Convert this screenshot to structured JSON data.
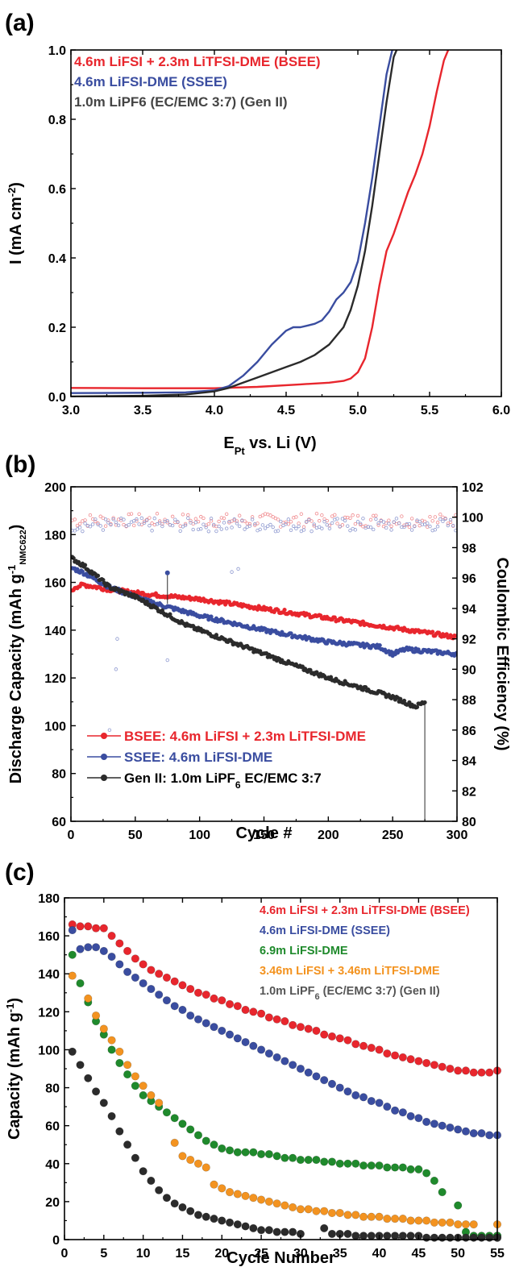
{
  "chart_data": [
    {
      "panel": "(a)",
      "type": "line",
      "xlabel": "E",
      "xlabel_sub": "Pt",
      "xlabel_rest": " vs. Li (V)",
      "ylabel": "I (mA cm",
      "ylabel_sup": "-2",
      "ylabel_end": ")",
      "xlim": [
        3.0,
        6.0
      ],
      "ylim": [
        0.0,
        1.0
      ],
      "xticks": [
        3.0,
        3.5,
        4.0,
        4.5,
        5.0,
        5.5,
        6.0
      ],
      "yticks": [
        0.0,
        0.2,
        0.4,
        0.6,
        0.8,
        1.0
      ],
      "series": [
        {
          "name": "4.6m LiFSI + 2.3m LiTFSI-DME (BSEE)",
          "color": "#e8262d",
          "x": [
            3.0,
            3.5,
            4.0,
            4.3,
            4.6,
            4.8,
            4.9,
            4.95,
            5.0,
            5.05,
            5.1,
            5.15,
            5.2,
            5.25,
            5.3,
            5.35,
            5.4,
            5.45,
            5.5,
            5.55,
            5.6,
            5.63
          ],
          "y": [
            0.025,
            0.024,
            0.024,
            0.028,
            0.035,
            0.04,
            0.045,
            0.052,
            0.07,
            0.11,
            0.2,
            0.32,
            0.42,
            0.47,
            0.53,
            0.59,
            0.64,
            0.7,
            0.78,
            0.88,
            0.97,
            1.0
          ]
        },
        {
          "name": "4.6m LiFSI-DME (SSEE)",
          "color": "#3a4da0",
          "x": [
            3.0,
            3.5,
            3.8,
            4.0,
            4.1,
            4.2,
            4.3,
            4.4,
            4.5,
            4.55,
            4.6,
            4.65,
            4.7,
            4.75,
            4.8,
            4.85,
            4.9,
            4.95,
            5.0,
            5.05,
            5.1,
            5.15,
            5.2,
            5.24
          ],
          "y": [
            0.01,
            0.011,
            0.012,
            0.018,
            0.03,
            0.06,
            0.1,
            0.15,
            0.19,
            0.2,
            0.2,
            0.205,
            0.21,
            0.22,
            0.245,
            0.28,
            0.3,
            0.33,
            0.39,
            0.5,
            0.63,
            0.78,
            0.93,
            1.0
          ]
        },
        {
          "name": "1.0m LiPF6 (EC/EMC 3:7) (Gen II)",
          "color": "#2b2b2b",
          "x": [
            3.0,
            3.5,
            3.8,
            4.0,
            4.1,
            4.2,
            4.3,
            4.4,
            4.5,
            4.6,
            4.7,
            4.8,
            4.9,
            4.95,
            5.0,
            5.05,
            5.1,
            5.15,
            5.2,
            5.25,
            5.27
          ],
          "y": [
            0.0,
            0.002,
            0.006,
            0.015,
            0.025,
            0.04,
            0.055,
            0.07,
            0.085,
            0.1,
            0.12,
            0.15,
            0.2,
            0.25,
            0.32,
            0.42,
            0.55,
            0.7,
            0.85,
            0.98,
            1.0
          ]
        }
      ]
    },
    {
      "panel": "(b)",
      "type": "scatter",
      "xlabel": "Cycle #",
      "ylabel": "Discharge Capacity (mAh g",
      "ylabel_sup": "-1",
      "ylabel_sub": "NMC622",
      "ylabel_end": ")",
      "ylabel_right": "Coulombic Efficiency (%)",
      "xlim": [
        0,
        300
      ],
      "ylim": [
        60,
        200
      ],
      "ylim_right": [
        80,
        102
      ],
      "xticks": [
        0,
        50,
        100,
        150,
        200,
        250,
        300
      ],
      "yticks": [
        60,
        80,
        100,
        120,
        140,
        160,
        180,
        200
      ],
      "yticks_right": [
        80,
        82,
        84,
        86,
        88,
        90,
        92,
        94,
        96,
        98,
        100,
        102
      ],
      "legend": [
        {
          "name": "BSEE: 4.6m LiFSI + 2.3m LiTFSI-DME",
          "color": "#e8262d"
        },
        {
          "name": "SSEE: 4.6m LiFSI-DME",
          "color": "#3a4da0"
        },
        {
          "name": "Gen II: 1.0m LiPF",
          "sub": "6",
          "tail": " EC/EMC 3:7",
          "color": "#2b2b2b"
        }
      ],
      "series": [
        {
          "name": "BSEE capacity",
          "color": "#e8262d",
          "cycles": 300,
          "anchors": [
            [
              1,
              156
            ],
            [
              3,
              158
            ],
            [
              10,
              159
            ],
            [
              30,
              157
            ],
            [
              60,
              155
            ],
            [
              100,
              153
            ],
            [
              150,
              149
            ],
            [
              200,
              145
            ],
            [
              250,
              141
            ],
            [
              300,
              137
            ]
          ]
        },
        {
          "name": "SSEE capacity",
          "color": "#3a4da0",
          "cycles": 300,
          "anchors": [
            [
              1,
              166
            ],
            [
              10,
              164
            ],
            [
              30,
              158
            ],
            [
              60,
              152
            ],
            [
              100,
              146
            ],
            [
              150,
              140
            ],
            [
              200,
              135
            ],
            [
              240,
              133
            ],
            [
              250,
              130
            ],
            [
              260,
              132
            ],
            [
              300,
              130
            ]
          ]
        },
        {
          "name": "Gen II capacity",
          "color": "#2b2b2b",
          "cycles": 275,
          "anchors": [
            [
              1,
              170
            ],
            [
              10,
              167
            ],
            [
              30,
              158
            ],
            [
              50,
              154
            ],
            [
              70,
              148
            ],
            [
              90,
              142
            ],
            [
              120,
              136
            ],
            [
              150,
              130
            ],
            [
              200,
              120
            ],
            [
              250,
              112
            ],
            [
              268,
              108
            ],
            [
              275,
              110
            ]
          ]
        },
        {
          "name": "BSEE CE",
          "color": "#f08a8e",
          "cycles": 300,
          "ce": 99.8
        },
        {
          "name": "SSEE CE",
          "color": "#8f9ad0",
          "cycles": 300,
          "ce": 99.5
        }
      ]
    },
    {
      "panel": "(c)",
      "type": "scatter",
      "xlabel": "Cycle Number",
      "ylabel": "Capacity (mAh g",
      "ylabel_sup": "-1",
      "ylabel_end": ")",
      "xlim": [
        0,
        55
      ],
      "ylim": [
        0,
        180
      ],
      "xticks": [
        0,
        5,
        10,
        15,
        20,
        25,
        30,
        35,
        40,
        45,
        50,
        55
      ],
      "yticks": [
        0,
        20,
        40,
        60,
        80,
        100,
        120,
        140,
        160,
        180
      ],
      "series": [
        {
          "name": "4.6m LiFSI + 2.3m LiTFSI-DME (BSEE)",
          "color": "#e8262d",
          "values": [
            166,
            165,
            165,
            164,
            164,
            160,
            156,
            152,
            148,
            145,
            142,
            140,
            138,
            136,
            134,
            132,
            130,
            129,
            127,
            126,
            124,
            123,
            121,
            120,
            119,
            117,
            116,
            115,
            113,
            112,
            111,
            110,
            108,
            107,
            106,
            105,
            103,
            102,
            101,
            100,
            98,
            97,
            96,
            95,
            94,
            93,
            92,
            91,
            90,
            89,
            89,
            88,
            88,
            88,
            89
          ]
        },
        {
          "name": "4.6m LiFSI-DME (SSEE)",
          "color": "#3a4da0",
          "values": [
            163,
            153,
            154,
            154,
            152,
            149,
            145,
            141,
            138,
            135,
            132,
            129,
            126,
            123,
            121,
            118,
            116,
            114,
            112,
            110,
            108,
            106,
            104,
            102,
            100,
            98,
            96,
            94,
            92,
            90,
            88,
            86,
            84,
            82,
            80,
            78,
            76,
            75,
            73,
            72,
            70,
            68,
            67,
            65,
            64,
            62,
            61,
            60,
            59,
            58,
            57,
            56,
            56,
            55,
            55
          ]
        },
        {
          "name": "6.9m LiFSI-DME",
          "color": "#1f8a2c",
          "values": [
            150,
            135,
            125,
            115,
            108,
            100,
            93,
            87,
            81,
            76,
            73,
            70,
            67,
            64,
            61,
            58,
            55,
            52,
            50,
            48,
            47,
            46,
            46,
            46,
            45,
            45,
            44,
            43,
            43,
            42,
            42,
            42,
            41,
            41,
            40,
            40,
            40,
            39,
            39,
            39,
            38,
            38,
            38,
            37,
            37,
            35,
            31,
            25,
            18,
            4,
            2,
            2,
            2,
            2,
            2
          ],
          "cycles": [
            1,
            2,
            3,
            4,
            5,
            6,
            7,
            8,
            9,
            10,
            11,
            12,
            13,
            14,
            15,
            16,
            17,
            18,
            19,
            20,
            21,
            22,
            23,
            24,
            25,
            26,
            27,
            28,
            29,
            30,
            31,
            32,
            33,
            34,
            35,
            36,
            37,
            38,
            39,
            40,
            41,
            42,
            43,
            44,
            45,
            46,
            47,
            48,
            50,
            51,
            52,
            53,
            54,
            55,
            55
          ]
        },
        {
          "name": "3.46m LiFSI + 3.46m LiTFSI-DME",
          "color": "#f39320",
          "values": [
            139,
            127,
            118,
            111,
            105,
            99,
            92,
            86,
            81,
            76,
            72,
            51,
            44,
            42,
            40,
            38,
            29,
            27,
            25,
            24,
            23,
            22,
            21,
            20,
            19,
            18,
            17,
            16,
            16,
            15,
            15,
            14,
            14,
            13,
            13,
            12,
            12,
            12,
            11,
            11,
            11,
            10,
            10,
            10,
            9,
            9,
            9,
            8,
            8,
            8,
            8
          ],
          "cycles": [
            1,
            3,
            4,
            5,
            6,
            7,
            8,
            9,
            10,
            11,
            12,
            14,
            15,
            16,
            17,
            18,
            19,
            20,
            21,
            22,
            23,
            24,
            25,
            26,
            27,
            28,
            29,
            30,
            31,
            32,
            33,
            34,
            35,
            36,
            37,
            38,
            39,
            40,
            41,
            42,
            43,
            44,
            45,
            46,
            47,
            48,
            49,
            50,
            51,
            52,
            55
          ]
        },
        {
          "name": "1.0m LiPF6 (EC/EMC 3:7) (Gen II)",
          "color": "#2b2b2b",
          "values": [
            99,
            92,
            85,
            78,
            72,
            65,
            57,
            50,
            43,
            36,
            31,
            26,
            22,
            19,
            17,
            15,
            13,
            12,
            11,
            10,
            9,
            8,
            7,
            6,
            5,
            5,
            4,
            4,
            4,
            3,
            6,
            3,
            3,
            3,
            2,
            2,
            2,
            2,
            2,
            2,
            2,
            2,
            2,
            1,
            1,
            1,
            1,
            1,
            1,
            1,
            1,
            1,
            1,
            1
          ],
          "cycles": [
            1,
            2,
            3,
            4,
            5,
            6,
            7,
            8,
            9,
            10,
            11,
            12,
            13,
            14,
            15,
            16,
            17,
            18,
            19,
            20,
            21,
            22,
            23,
            24,
            25,
            26,
            27,
            28,
            29,
            30,
            33,
            34,
            35,
            36,
            37,
            38,
            39,
            40,
            41,
            42,
            43,
            44,
            45,
            46,
            47,
            48,
            49,
            50,
            51,
            52,
            53,
            54,
            55,
            55
          ]
        }
      ]
    }
  ],
  "legend_c": [
    {
      "text": "4.6m LiFSI + 2.3m LiTFSI-DME (BSEE)",
      "color": "#e8262d"
    },
    {
      "text": "4.6m LiFSI-DME (SSEE)",
      "color": "#3a4da0"
    },
    {
      "text": "6.9m LiFSI-DME",
      "color": "#1f8a2c"
    },
    {
      "text": "3.46m LiFSI + 3.46m LiTFSI-DME",
      "color": "#f39320"
    },
    {
      "text": "1.0m LiPF",
      "sub": "6",
      "tail": " (EC/EMC 3:7) (Gen II)",
      "color": "#555555"
    }
  ],
  "legend_a": [
    {
      "text": "4.6m LiFSI + 2.3m LiTFSI-DME (BSEE)",
      "color": "#e8262d"
    },
    {
      "text": "4.6m LiFSI-DME (SSEE)",
      "color": "#3a4da0"
    },
    {
      "text": "1.0m LiPF6 (EC/EMC 3:7) (Gen II)",
      "color": "#444444"
    }
  ]
}
